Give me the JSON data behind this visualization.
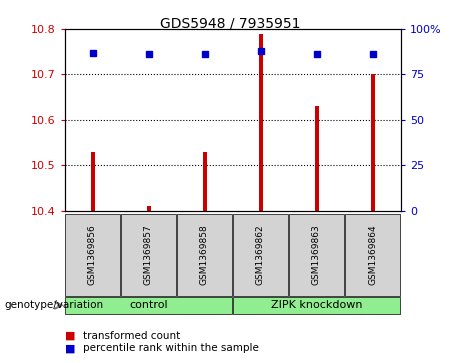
{
  "title": "GDS5948 / 7935951",
  "samples": [
    "GSM1369856",
    "GSM1369857",
    "GSM1369858",
    "GSM1369862",
    "GSM1369863",
    "GSM1369864"
  ],
  "bar_values": [
    10.53,
    10.41,
    10.53,
    10.79,
    10.63,
    10.7
  ],
  "percentile_values": [
    87,
    86,
    86,
    88,
    86,
    86
  ],
  "ylim_left": [
    10.4,
    10.8
  ],
  "ylim_right": [
    0,
    100
  ],
  "yticks_left": [
    10.4,
    10.5,
    10.6,
    10.7,
    10.8
  ],
  "yticks_right": [
    0,
    25,
    50,
    75,
    100
  ],
  "ytick_right_labels": [
    "0",
    "25",
    "50",
    "75",
    "100%"
  ],
  "bar_color": "#cc0000",
  "dot_color": "#0000cc",
  "bar_bottom": 10.4,
  "bar_width": 0.07,
  "group_configs": [
    {
      "label": "control",
      "start": 0,
      "end": 2
    },
    {
      "label": "ZIPK knockdown",
      "start": 3,
      "end": 5
    }
  ],
  "group_label_prefix": "genotype/variation",
  "legend_bar_label": "transformed count",
  "legend_dot_label": "percentile rank within the sample",
  "plot_bg_color": "#ffffff",
  "sample_bg_color": "#d3d3d3",
  "group_bg_color": "#90ee90",
  "dot_marker_size": 4
}
